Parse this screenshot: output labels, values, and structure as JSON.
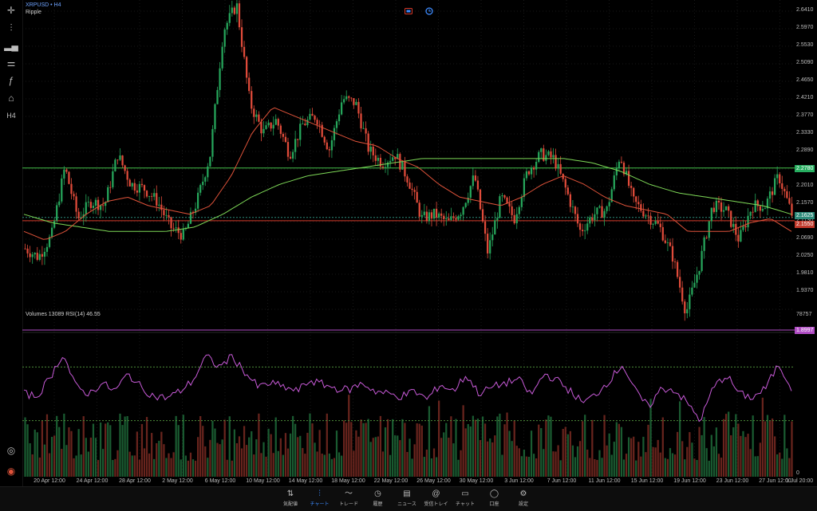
{
  "header": {
    "symbol": "XRPUSD • H4",
    "name": "Ripple"
  },
  "subchart": {
    "title": "Volumes 13089 RSI(14) 46.55",
    "volume_max_label": "78757",
    "zero_label": "0"
  },
  "price_axis": {
    "ticks": [
      "2.6410",
      "2.5970",
      "2.5530",
      "2.5090",
      "2.4650",
      "2.4210",
      "2.3770",
      "2.3330",
      "2.2890",
      "2.2450",
      "2.2010",
      "2.1570",
      "2.1130",
      "2.0690",
      "2.0250",
      "1.9810",
      "1.9370"
    ]
  },
  "price_badges": [
    {
      "text": "2.6932",
      "color": "#c0392b"
    },
    {
      "text": "2.2780",
      "color": "#27ae60"
    },
    {
      "text": "2.1625",
      "color": "#2e8b7a"
    },
    {
      "text": "2.1550",
      "color": "#c0392b"
    },
    {
      "text": "1.8997",
      "color": "#b04cc4"
    }
  ],
  "time_axis": [
    "20 Apr 12:00",
    "24 Apr 12:00",
    "28 Apr 12:00",
    "2 May 12:00",
    "6 May 12:00",
    "10 May 12:00",
    "14 May 12:00",
    "18 May 12:00",
    "22 May 12:00",
    "26 May 12:00",
    "30 May 12:00",
    "3 Jun 12:00",
    "7 Jun 12:00",
    "11 Jun 12:00",
    "15 Jun 12:00",
    "19 Jun 12:00",
    "23 Jun 12:00",
    "27 Jun 12:00",
    "1 Jul 20:00"
  ],
  "left_toolbar": [
    {
      "icon": "crosshair-icon",
      "glyph": "✛"
    },
    {
      "icon": "candlestick-icon",
      "glyph": "⫶"
    },
    {
      "icon": "bar-chart-icon",
      "glyph": "▂▄"
    },
    {
      "icon": "indicator-settings-icon",
      "glyph": "⚌"
    },
    {
      "icon": "function-icon",
      "glyph": "ƒ"
    },
    {
      "icon": "objects-icon",
      "glyph": "⌂"
    },
    {
      "icon": "timeframe-label",
      "glyph": "H4"
    }
  ],
  "bottom_left": [
    {
      "icon": "zoom-icon",
      "glyph": "◎"
    },
    {
      "icon": "app-logo-icon",
      "glyph": "◉"
    }
  ],
  "tabs": [
    {
      "label": "気配値",
      "icon": "quotes-icon",
      "glyph": "⇅",
      "active": false
    },
    {
      "label": "チャート",
      "icon": "chart-icon",
      "glyph": "⫶",
      "active": true
    },
    {
      "label": "トレード",
      "icon": "trade-icon",
      "glyph": "〜",
      "active": false
    },
    {
      "label": "履歴",
      "icon": "history-icon",
      "glyph": "◷",
      "active": false
    },
    {
      "label": "ニュース",
      "icon": "news-icon",
      "glyph": "▤",
      "active": false
    },
    {
      "label": "受信トレイ",
      "icon": "inbox-icon",
      "glyph": "@",
      "active": false
    },
    {
      "label": "チャット",
      "icon": "chat-icon",
      "glyph": "▭",
      "active": false
    },
    {
      "label": "口座",
      "icon": "account-icon",
      "glyph": "◯",
      "active": false
    },
    {
      "label": "設定",
      "icon": "settings-icon",
      "glyph": "⚙",
      "active": false
    }
  ],
  "colors": {
    "bull": "#26a65b",
    "bear": "#e04b3a",
    "ma_fast": "#e0533a",
    "ma_slow": "#7ed957",
    "rsi": "#c85ad8",
    "hline_red": "#d63a2a",
    "hline_green": "#45c14a",
    "hline_purple": "#b04cc4",
    "accent": "#3d8bff"
  },
  "chart_data": {
    "type": "candlestick",
    "title": "",
    "x": [
      "20 Apr 12:00",
      "24 Apr 12:00",
      "28 Apr 12:00",
      "2 May 12:00",
      "6 May 12:00",
      "10 May 12:00",
      "14 May 12:00",
      "18 May 12:00",
      "22 May 12:00",
      "26 May 12:00",
      "30 May 12:00",
      "3 Jun 12:00",
      "7 Jun 12:00",
      "11 Jun 12:00",
      "15 Jun 12:00",
      "19 Jun 12:00",
      "23 Jun 12:00",
      "27 Jun 12:00",
      "1 Jul 20:00"
    ],
    "close_path": [
      2.09,
      2.07,
      2.12,
      2.28,
      2.16,
      2.2,
      2.19,
      2.31,
      2.24,
      2.23,
      2.2,
      2.14,
      2.12,
      2.2,
      2.31,
      2.6,
      2.66,
      2.43,
      2.36,
      2.39,
      2.31,
      2.38,
      2.4,
      2.32,
      2.44,
      2.43,
      2.32,
      2.29,
      2.31,
      2.25,
      2.16,
      2.17,
      2.15,
      2.18,
      2.26,
      2.08,
      2.21,
      2.16,
      2.27,
      2.31,
      2.3,
      2.22,
      2.13,
      2.17,
      2.18,
      2.31,
      2.2,
      2.17,
      2.14,
      2.07,
      1.94,
      2.05,
      2.19,
      2.18,
      2.11,
      2.19,
      2.19,
      2.26,
      2.17
    ],
    "ma_fast_path": [
      2.13,
      2.11,
      2.13,
      2.17,
      2.2,
      2.21,
      2.19,
      2.18,
      2.17,
      2.19,
      2.26,
      2.36,
      2.42,
      2.4,
      2.38,
      2.36,
      2.34,
      2.33,
      2.3,
      2.28,
      2.24,
      2.21,
      2.2,
      2.19,
      2.21,
      2.24,
      2.26,
      2.24,
      2.21,
      2.19,
      2.18,
      2.17,
      2.13,
      2.13,
      2.13,
      2.15,
      2.16,
      2.13
    ],
    "ma_slow_path": [
      2.17,
      2.15,
      2.14,
      2.13,
      2.13,
      2.13,
      2.14,
      2.17,
      2.21,
      2.24,
      2.26,
      2.27,
      2.28,
      2.29,
      2.3,
      2.3,
      2.3,
      2.3,
      2.3,
      2.3,
      2.29,
      2.27,
      2.24,
      2.22,
      2.21,
      2.2,
      2.19,
      2.17
    ],
    "rsi_path": [
      50,
      48,
      62,
      80,
      55,
      50,
      58,
      52,
      65,
      55,
      48,
      47,
      52,
      60,
      78,
      70,
      78,
      66,
      55,
      58,
      55,
      52,
      60,
      57,
      54,
      53,
      58,
      52,
      50,
      48,
      52,
      46,
      57,
      52,
      64,
      50,
      55,
      58,
      61,
      49,
      65,
      60,
      52,
      43,
      50,
      60,
      72,
      52,
      40,
      54,
      53,
      43,
      30,
      55,
      64,
      50,
      47,
      54,
      72,
      55
    ],
    "rsi_levels": [
      70,
      30
    ],
    "hlines": [
      2.6932,
      2.278,
      2.155,
      1.8997
    ],
    "last_price": 2.1625,
    "ylim": [
      1.8997,
      2.659
    ]
  }
}
